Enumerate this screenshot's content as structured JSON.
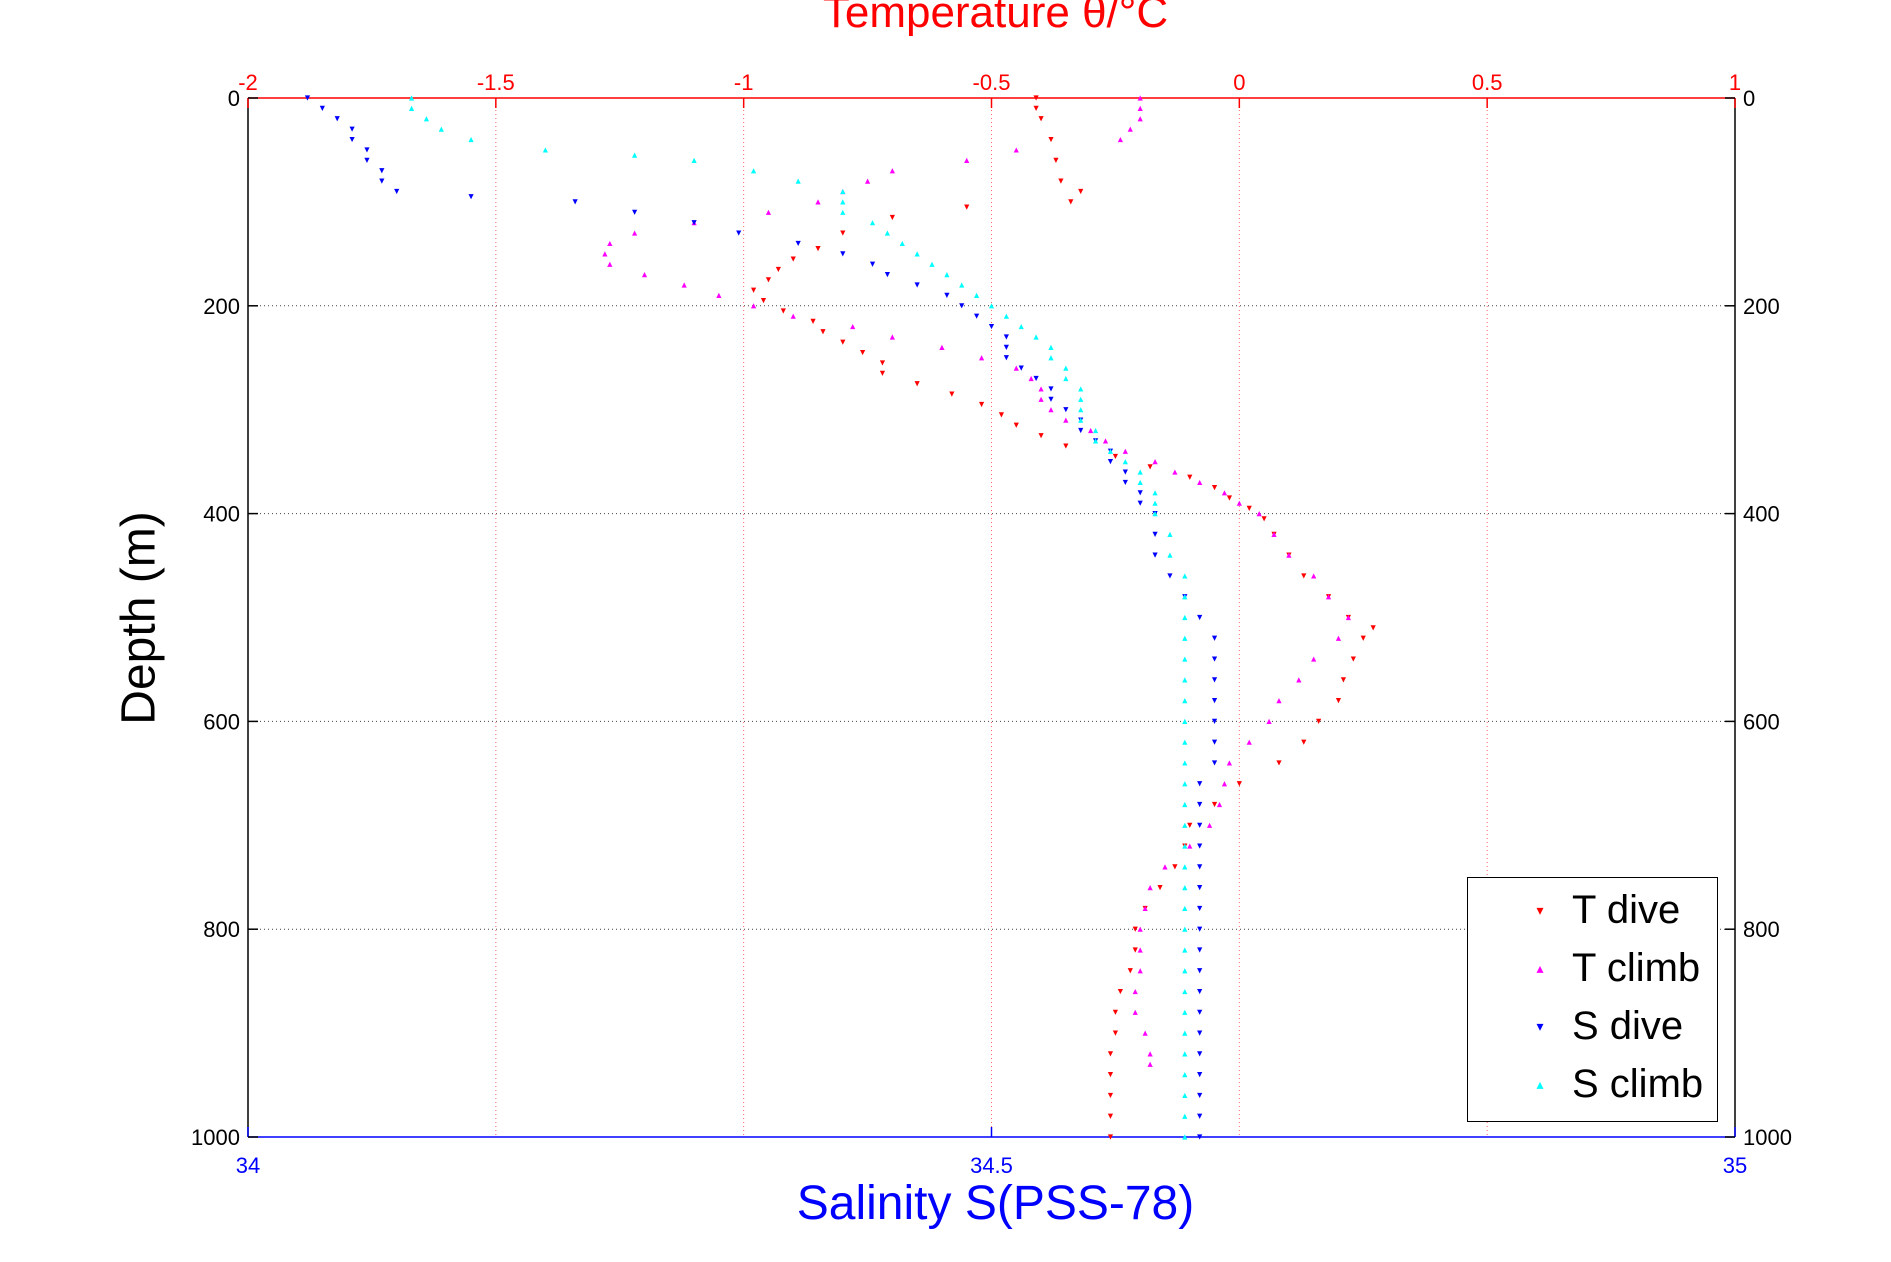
{
  "chart_data": {
    "type": "scatter",
    "top_axis": {
      "label": "Temperature θ/°C",
      "range": [
        -2,
        1
      ],
      "ticks": [
        "-2",
        "-1.5",
        "-1",
        "-0.5",
        "0",
        "0.5",
        "1"
      ],
      "color": "#ff0000"
    },
    "bottom_axis": {
      "label": "Salinity S(PSS-78)",
      "range": [
        34,
        35
      ],
      "ticks": [
        "34",
        "34.5",
        "35"
      ],
      "color": "#0000ff"
    },
    "y_axis": {
      "label": "Depth (m)",
      "range": [
        0,
        1000
      ],
      "reversed": true,
      "ticks": [
        "0",
        "200",
        "400",
        "600",
        "800",
        "1000"
      ]
    },
    "grid": true,
    "legend_position": "bottom-right",
    "series": [
      {
        "name": "T dive",
        "axis": "temperature",
        "color": "#ff0000",
        "marker": "triangle-down",
        "points": [
          [
            0,
            -0.41
          ],
          [
            10,
            -0.41
          ],
          [
            20,
            -0.4
          ],
          [
            40,
            -0.38
          ],
          [
            60,
            -0.37
          ],
          [
            80,
            -0.36
          ],
          [
            90,
            -0.32
          ],
          [
            100,
            -0.34
          ],
          [
            105,
            -0.55
          ],
          [
            115,
            -0.7
          ],
          [
            130,
            -0.8
          ],
          [
            145,
            -0.85
          ],
          [
            155,
            -0.9
          ],
          [
            165,
            -0.93
          ],
          [
            175,
            -0.95
          ],
          [
            185,
            -0.98
          ],
          [
            195,
            -0.96
          ],
          [
            205,
            -0.92
          ],
          [
            215,
            -0.86
          ],
          [
            225,
            -0.84
          ],
          [
            235,
            -0.8
          ],
          [
            245,
            -0.76
          ],
          [
            255,
            -0.72
          ],
          [
            265,
            -0.72
          ],
          [
            275,
            -0.65
          ],
          [
            285,
            -0.58
          ],
          [
            295,
            -0.52
          ],
          [
            305,
            -0.48
          ],
          [
            315,
            -0.45
          ],
          [
            325,
            -0.4
          ],
          [
            335,
            -0.35
          ],
          [
            345,
            -0.25
          ],
          [
            355,
            -0.18
          ],
          [
            365,
            -0.1
          ],
          [
            375,
            -0.05
          ],
          [
            385,
            -0.02
          ],
          [
            395,
            0.02
          ],
          [
            405,
            0.05
          ],
          [
            420,
            0.07
          ],
          [
            440,
            0.1
          ],
          [
            460,
            0.13
          ],
          [
            480,
            0.18
          ],
          [
            500,
            0.22
          ],
          [
            510,
            0.27
          ],
          [
            520,
            0.25
          ],
          [
            540,
            0.23
          ],
          [
            560,
            0.21
          ],
          [
            580,
            0.2
          ],
          [
            600,
            0.16
          ],
          [
            620,
            0.13
          ],
          [
            640,
            0.08
          ],
          [
            660,
            0.0
          ],
          [
            680,
            -0.05
          ],
          [
            700,
            -0.1
          ],
          [
            720,
            -0.11
          ],
          [
            740,
            -0.13
          ],
          [
            760,
            -0.16
          ],
          [
            780,
            -0.19
          ],
          [
            800,
            -0.21
          ],
          [
            820,
            -0.21
          ],
          [
            840,
            -0.22
          ],
          [
            860,
            -0.24
          ],
          [
            880,
            -0.25
          ],
          [
            900,
            -0.25
          ],
          [
            920,
            -0.26
          ],
          [
            940,
            -0.26
          ],
          [
            960,
            -0.26
          ],
          [
            980,
            -0.26
          ],
          [
            1000,
            -0.26
          ]
        ]
      },
      {
        "name": "T climb",
        "axis": "temperature",
        "color": "#ff00ff",
        "marker": "triangle-up",
        "points": [
          [
            0,
            -0.2
          ],
          [
            10,
            -0.2
          ],
          [
            20,
            -0.2
          ],
          [
            30,
            -0.22
          ],
          [
            40,
            -0.24
          ],
          [
            50,
            -0.45
          ],
          [
            60,
            -0.55
          ],
          [
            70,
            -0.7
          ],
          [
            80,
            -0.75
          ],
          [
            90,
            -0.8
          ],
          [
            100,
            -0.85
          ],
          [
            110,
            -0.95
          ],
          [
            120,
            -1.1
          ],
          [
            130,
            -1.22
          ],
          [
            140,
            -1.27
          ],
          [
            150,
            -1.28
          ],
          [
            160,
            -1.27
          ],
          [
            170,
            -1.2
          ],
          [
            180,
            -1.12
          ],
          [
            190,
            -1.05
          ],
          [
            200,
            -0.98
          ],
          [
            210,
            -0.9
          ],
          [
            220,
            -0.78
          ],
          [
            230,
            -0.7
          ],
          [
            240,
            -0.6
          ],
          [
            250,
            -0.52
          ],
          [
            260,
            -0.45
          ],
          [
            270,
            -0.42
          ],
          [
            280,
            -0.4
          ],
          [
            290,
            -0.4
          ],
          [
            300,
            -0.38
          ],
          [
            310,
            -0.35
          ],
          [
            320,
            -0.3
          ],
          [
            330,
            -0.27
          ],
          [
            340,
            -0.23
          ],
          [
            350,
            -0.17
          ],
          [
            360,
            -0.13
          ],
          [
            370,
            -0.08
          ],
          [
            380,
            -0.03
          ],
          [
            390,
            0.0
          ],
          [
            400,
            0.04
          ],
          [
            420,
            0.07
          ],
          [
            440,
            0.1
          ],
          [
            460,
            0.15
          ],
          [
            480,
            0.18
          ],
          [
            500,
            0.22
          ],
          [
            520,
            0.2
          ],
          [
            540,
            0.15
          ],
          [
            560,
            0.12
          ],
          [
            580,
            0.08
          ],
          [
            600,
            0.06
          ],
          [
            620,
            0.02
          ],
          [
            640,
            -0.02
          ],
          [
            660,
            -0.03
          ],
          [
            680,
            -0.04
          ],
          [
            700,
            -0.06
          ],
          [
            720,
            -0.1
          ],
          [
            740,
            -0.15
          ],
          [
            760,
            -0.18
          ],
          [
            780,
            -0.19
          ],
          [
            800,
            -0.2
          ],
          [
            820,
            -0.2
          ],
          [
            840,
            -0.2
          ],
          [
            860,
            -0.21
          ],
          [
            880,
            -0.21
          ],
          [
            900,
            -0.19
          ],
          [
            920,
            -0.18
          ],
          [
            930,
            -0.18
          ]
        ]
      },
      {
        "name": "S dive",
        "axis": "salinity",
        "color": "#0000ff",
        "marker": "triangle-down",
        "points": [
          [
            0,
            34.04
          ],
          [
            10,
            34.05
          ],
          [
            20,
            34.06
          ],
          [
            30,
            34.07
          ],
          [
            40,
            34.07
          ],
          [
            50,
            34.08
          ],
          [
            60,
            34.08
          ],
          [
            70,
            34.09
          ],
          [
            80,
            34.09
          ],
          [
            90,
            34.1
          ],
          [
            95,
            34.15
          ],
          [
            100,
            34.22
          ],
          [
            110,
            34.26
          ],
          [
            120,
            34.3
          ],
          [
            130,
            34.33
          ],
          [
            140,
            34.37
          ],
          [
            150,
            34.4
          ],
          [
            160,
            34.42
          ],
          [
            170,
            34.43
          ],
          [
            180,
            34.45
          ],
          [
            190,
            34.47
          ],
          [
            200,
            34.48
          ],
          [
            210,
            34.49
          ],
          [
            220,
            34.5
          ],
          [
            230,
            34.51
          ],
          [
            240,
            34.51
          ],
          [
            250,
            34.51
          ],
          [
            260,
            34.52
          ],
          [
            270,
            34.53
          ],
          [
            280,
            34.54
          ],
          [
            290,
            34.54
          ],
          [
            300,
            34.55
          ],
          [
            310,
            34.56
          ],
          [
            320,
            34.56
          ],
          [
            330,
            34.57
          ],
          [
            340,
            34.58
          ],
          [
            350,
            34.58
          ],
          [
            360,
            34.59
          ],
          [
            370,
            34.59
          ],
          [
            380,
            34.6
          ],
          [
            390,
            34.6
          ],
          [
            400,
            34.61
          ],
          [
            420,
            34.61
          ],
          [
            440,
            34.61
          ],
          [
            460,
            34.62
          ],
          [
            480,
            34.63
          ],
          [
            500,
            34.64
          ],
          [
            520,
            34.65
          ],
          [
            540,
            34.65
          ],
          [
            560,
            34.65
          ],
          [
            580,
            34.65
          ],
          [
            600,
            34.65
          ],
          [
            620,
            34.65
          ],
          [
            640,
            34.65
          ],
          [
            660,
            34.64
          ],
          [
            680,
            34.64
          ],
          [
            700,
            34.64
          ],
          [
            720,
            34.64
          ],
          [
            740,
            34.64
          ],
          [
            760,
            34.64
          ],
          [
            780,
            34.64
          ],
          [
            800,
            34.64
          ],
          [
            820,
            34.64
          ],
          [
            840,
            34.64
          ],
          [
            860,
            34.64
          ],
          [
            880,
            34.64
          ],
          [
            900,
            34.64
          ],
          [
            920,
            34.64
          ],
          [
            940,
            34.64
          ],
          [
            960,
            34.64
          ],
          [
            980,
            34.64
          ],
          [
            1000,
            34.64
          ]
        ]
      },
      {
        "name": "S climb",
        "axis": "salinity",
        "color": "#00ffff",
        "marker": "triangle-up",
        "points": [
          [
            0,
            34.11
          ],
          [
            10,
            34.11
          ],
          [
            20,
            34.12
          ],
          [
            30,
            34.13
          ],
          [
            40,
            34.15
          ],
          [
            50,
            34.2
          ],
          [
            55,
            34.26
          ],
          [
            60,
            34.3
          ],
          [
            70,
            34.34
          ],
          [
            80,
            34.37
          ],
          [
            90,
            34.4
          ],
          [
            100,
            34.4
          ],
          [
            110,
            34.4
          ],
          [
            120,
            34.42
          ],
          [
            130,
            34.43
          ],
          [
            140,
            34.44
          ],
          [
            150,
            34.45
          ],
          [
            160,
            34.46
          ],
          [
            170,
            34.47
          ],
          [
            180,
            34.48
          ],
          [
            190,
            34.49
          ],
          [
            200,
            34.5
          ],
          [
            210,
            34.51
          ],
          [
            220,
            34.52
          ],
          [
            230,
            34.53
          ],
          [
            240,
            34.54
          ],
          [
            250,
            34.54
          ],
          [
            260,
            34.55
          ],
          [
            270,
            34.55
          ],
          [
            280,
            34.56
          ],
          [
            290,
            34.56
          ],
          [
            300,
            34.56
          ],
          [
            310,
            34.56
          ],
          [
            320,
            34.57
          ],
          [
            330,
            34.57
          ],
          [
            340,
            34.58
          ],
          [
            350,
            34.59
          ],
          [
            360,
            34.6
          ],
          [
            370,
            34.6
          ],
          [
            380,
            34.61
          ],
          [
            390,
            34.61
          ],
          [
            400,
            34.61
          ],
          [
            420,
            34.62
          ],
          [
            440,
            34.62
          ],
          [
            460,
            34.63
          ],
          [
            480,
            34.63
          ],
          [
            500,
            34.63
          ],
          [
            520,
            34.63
          ],
          [
            540,
            34.63
          ],
          [
            560,
            34.63
          ],
          [
            580,
            34.63
          ],
          [
            600,
            34.63
          ],
          [
            620,
            34.63
          ],
          [
            640,
            34.63
          ],
          [
            660,
            34.63
          ],
          [
            680,
            34.63
          ],
          [
            700,
            34.63
          ],
          [
            720,
            34.63
          ],
          [
            740,
            34.63
          ],
          [
            760,
            34.63
          ],
          [
            780,
            34.63
          ],
          [
            800,
            34.63
          ],
          [
            820,
            34.63
          ],
          [
            840,
            34.63
          ],
          [
            860,
            34.63
          ],
          [
            880,
            34.63
          ],
          [
            900,
            34.63
          ],
          [
            920,
            34.63
          ],
          [
            940,
            34.63
          ],
          [
            960,
            34.63
          ],
          [
            980,
            34.63
          ],
          [
            1000,
            34.63
          ]
        ]
      }
    ]
  }
}
